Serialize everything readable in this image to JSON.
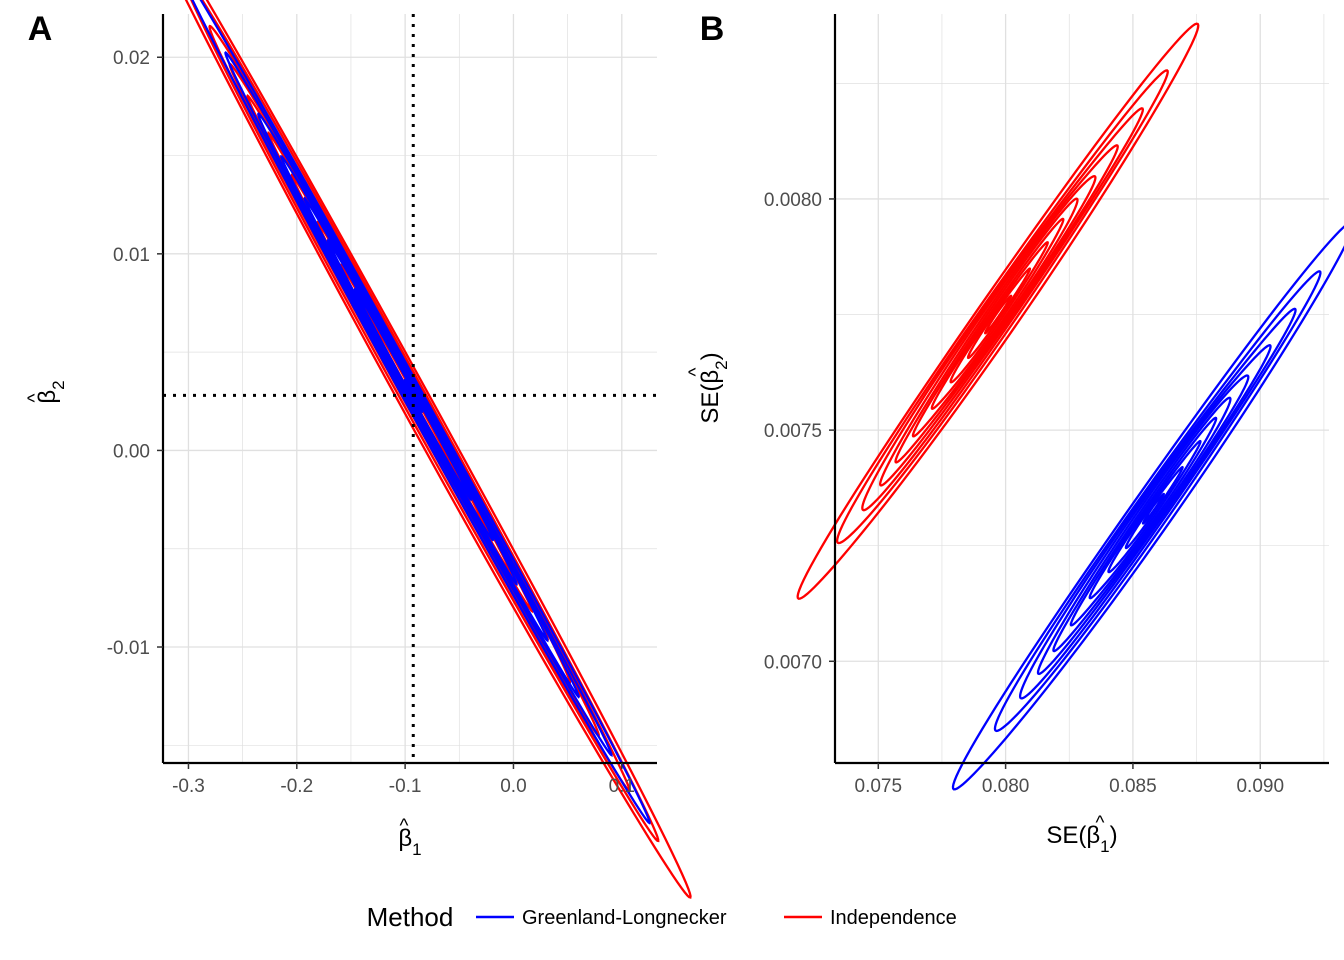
{
  "chart_data": [
    {
      "panel": "A",
      "type": "contour",
      "x_label_base": "β",
      "x_label_hat": "^",
      "x_label_sub": "1",
      "y_label_base": "β",
      "y_label_hat": "^",
      "y_label_sub": "2",
      "xlim": [
        -0.3235,
        0.1325
      ],
      "ylim": [
        -0.0159,
        0.0222
      ],
      "x_ticks": [
        -0.3,
        -0.2,
        -0.1,
        0.0,
        0.1
      ],
      "x_tick_labels": [
        "-0.3",
        "-0.2",
        "-0.1",
        "0.0",
        "0.1"
      ],
      "y_ticks": [
        -0.01,
        0.0,
        0.01,
        0.02
      ],
      "y_tick_labels": [
        "-0.01",
        "0.00",
        "0.01",
        "0.02"
      ],
      "reference_lines": {
        "x": -0.0925,
        "y": 0.0028
      },
      "series": [
        {
          "name": "Independence",
          "color": "#ff0000",
          "center": [
            -0.093,
            0.0028
          ],
          "axis_dir": [
            1,
            -0.1
          ],
          "levels": [
            {
              "a": 0.2515,
              "b": 0.0016
            },
            {
              "a": 0.218,
              "b": 0.0013
            },
            {
              "a": 0.194,
              "b": 0.00105
            },
            {
              "a": 0.172,
              "b": 0.00088
            },
            {
              "a": 0.152,
              "b": 0.00073
            },
            {
              "a": 0.132,
              "b": 0.0006
            },
            {
              "a": 0.112,
              "b": 0.00048
            },
            {
              "a": 0.09,
              "b": 0.00036
            },
            {
              "a": 0.068,
              "b": 0.00025
            },
            {
              "a": 0.046,
              "b": 0.00015
            }
          ]
        },
        {
          "name": "Greenland-Longnecker",
          "color": "#0000ff",
          "center": [
            -0.0925,
            0.0028
          ],
          "axis_dir": [
            1,
            -0.1
          ],
          "levels": [
            {
              "a": 0.214,
              "b": 0.00102
            },
            {
              "a": 0.176,
              "b": 0.0008
            },
            {
              "a": 0.148,
              "b": 0.00066
            },
            {
              "a": 0.124,
              "b": 0.00054
            },
            {
              "a": 0.1,
              "b": 0.00043
            },
            {
              "a": 0.078,
              "b": 0.00033
            },
            {
              "a": 0.054,
              "b": 0.00022
            },
            {
              "a": 0.008,
              "b": 4e-05
            }
          ]
        }
      ]
    },
    {
      "panel": "B",
      "type": "contour",
      "x_label_base": "SE(β",
      "x_label_hat": "^",
      "x_label_sub": "1",
      "x_label_close": ")",
      "y_label_base": "SE(β",
      "y_label_hat": "^",
      "y_label_sub": "2",
      "y_label_close": ")",
      "xlim": [
        0.0733,
        0.0927
      ],
      "ylim": [
        0.00678,
        0.0084
      ],
      "x_ticks": [
        0.075,
        0.08,
        0.085,
        0.09
      ],
      "x_tick_labels": [
        "0.075",
        "0.080",
        "0.085",
        "0.090"
      ],
      "y_ticks": [
        0.007,
        0.0075,
        0.008
      ],
      "y_tick_labels": [
        "0.0070",
        "0.0075",
        "0.0080"
      ],
      "series": [
        {
          "name": "Independence",
          "color": "#ff0000",
          "center": [
            0.0797,
            0.00775
          ],
          "axis_dir": [
            1,
            0.0785
          ],
          "levels": [
            {
              "a": 0.0077,
              "b": 7.75e-05
            },
            {
              "a": 0.0064,
              "b": 6.45e-05
            },
            {
              "a": 0.0055,
              "b": 5.55e-05
            },
            {
              "a": 0.0047,
              "b": 4.75e-05
            },
            {
              "a": 0.004,
              "b": 4e-05
            },
            {
              "a": 0.0033,
              "b": 3.35e-05
            },
            {
              "a": 0.0026,
              "b": 2.65e-05
            },
            {
              "a": 0.0019,
              "b": 1.95e-05
            },
            {
              "a": 0.0012,
              "b": 1.25e-05
            },
            {
              "a": 0.0005,
              "b": 6e-06
            }
          ]
        },
        {
          "name": "Greenland-Longnecker",
          "color": "#0000ff",
          "center": [
            0.0858,
            0.00733
          ],
          "axis_dir": [
            1,
            0.0775
          ],
          "levels": [
            {
              "a": 0.0077,
              "b": 7.75e-05
            },
            {
              "a": 0.0063,
              "b": 6.4e-05
            },
            {
              "a": 0.0054,
              "b": 5.45e-05
            },
            {
              "a": 0.0046,
              "b": 4.65e-05
            },
            {
              "a": 0.0039,
              "b": 3.95e-05
            },
            {
              "a": 0.0032,
              "b": 3.25e-05
            },
            {
              "a": 0.0025,
              "b": 2.55e-05
            },
            {
              "a": 0.0018,
              "b": 1.85e-05
            },
            {
              "a": 0.0011,
              "b": 1.15e-05
            },
            {
              "a": 0.0004,
              "b": 5e-06
            }
          ]
        }
      ]
    }
  ],
  "legend": {
    "title": "Method",
    "items": [
      {
        "label": "Greenland-Longnecker",
        "color": "#0000ff"
      },
      {
        "label": "Independence",
        "color": "#ff0000"
      }
    ]
  }
}
